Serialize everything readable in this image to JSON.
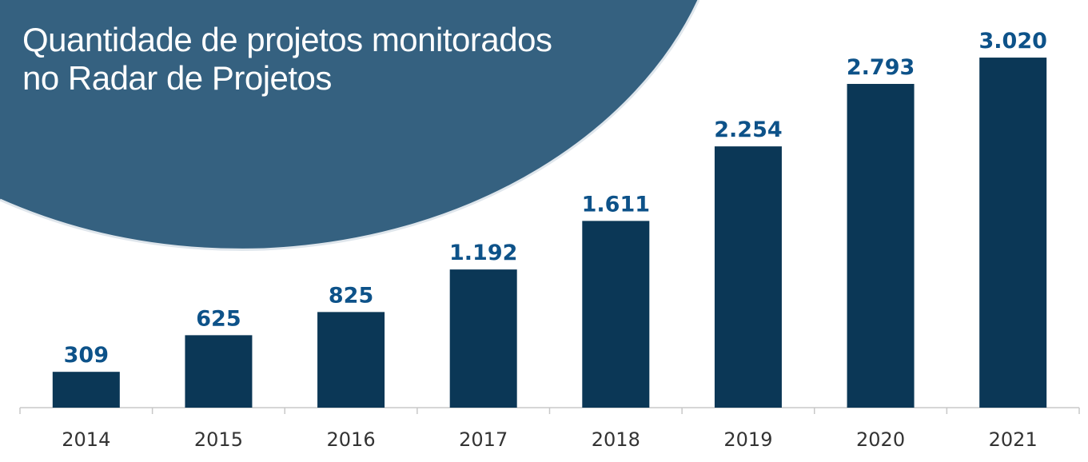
{
  "colors": {
    "bar": "#0b3756",
    "value_label": "#0d5289",
    "axis": "#c8c8c8",
    "tick_label": "#333333",
    "background_shape": "#356180",
    "title": "#ffffff"
  },
  "chart_data": {
    "type": "bar",
    "title_lines": [
      "Quantidade de projetos monitorados",
      "no Radar de Projetos"
    ],
    "categories": [
      "2014",
      "2015",
      "2016",
      "2017",
      "2018",
      "2019",
      "2020",
      "2021"
    ],
    "values": [
      309,
      625,
      825,
      1192,
      1611,
      2254,
      2793,
      3020
    ],
    "value_labels": [
      "309",
      "625",
      "825",
      "1.192",
      "1.611",
      "2.254",
      "2.793",
      "3.020"
    ],
    "xlabel": "",
    "ylabel": "",
    "ylim": [
      0,
      3310
    ],
    "grid": false,
    "legend": "none"
  }
}
